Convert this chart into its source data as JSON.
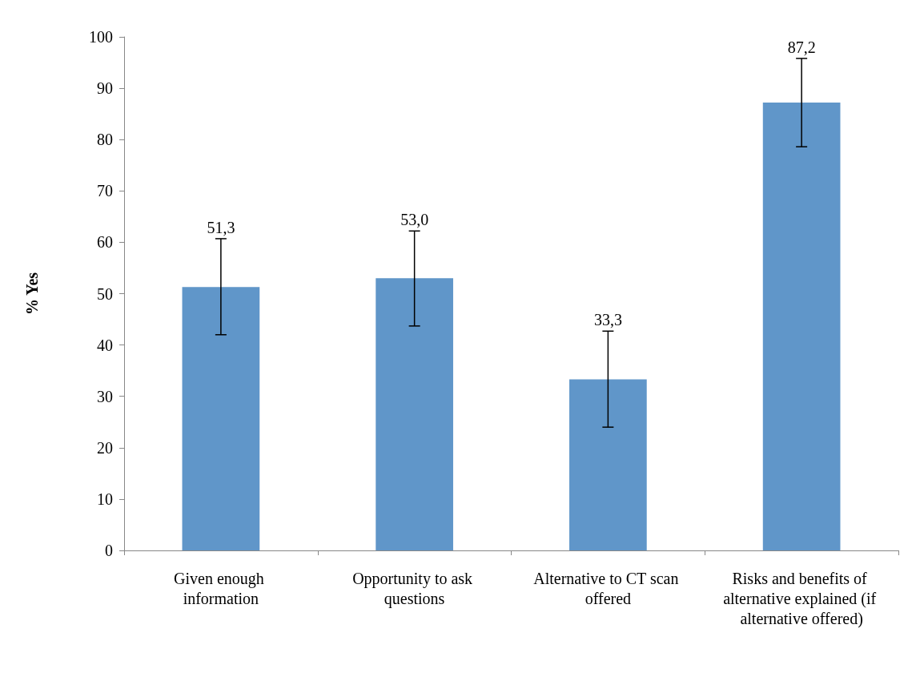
{
  "chart_data": {
    "type": "bar",
    "ylabel": "% Yes",
    "categories": [
      "Given enough information",
      "Opportunity to ask questions",
      "Alternative to CT scan offered",
      "Risks and benefits of alternative explained (if alternative offered)"
    ],
    "values": [
      51.3,
      53.0,
      33.3,
      87.2
    ],
    "value_labels": [
      "51,3",
      "53,0",
      "33,3",
      "87,2"
    ],
    "errors": [
      [
        42.0,
        60.7
      ],
      [
        43.7,
        62.2
      ],
      [
        24.0,
        42.7
      ],
      [
        78.6,
        95.8
      ]
    ],
    "color": "#6096c9",
    "ylim": [
      0,
      100
    ],
    "yticks": [
      0,
      10,
      20,
      30,
      40,
      50,
      60,
      70,
      80,
      90,
      100
    ],
    "grid": false
  }
}
